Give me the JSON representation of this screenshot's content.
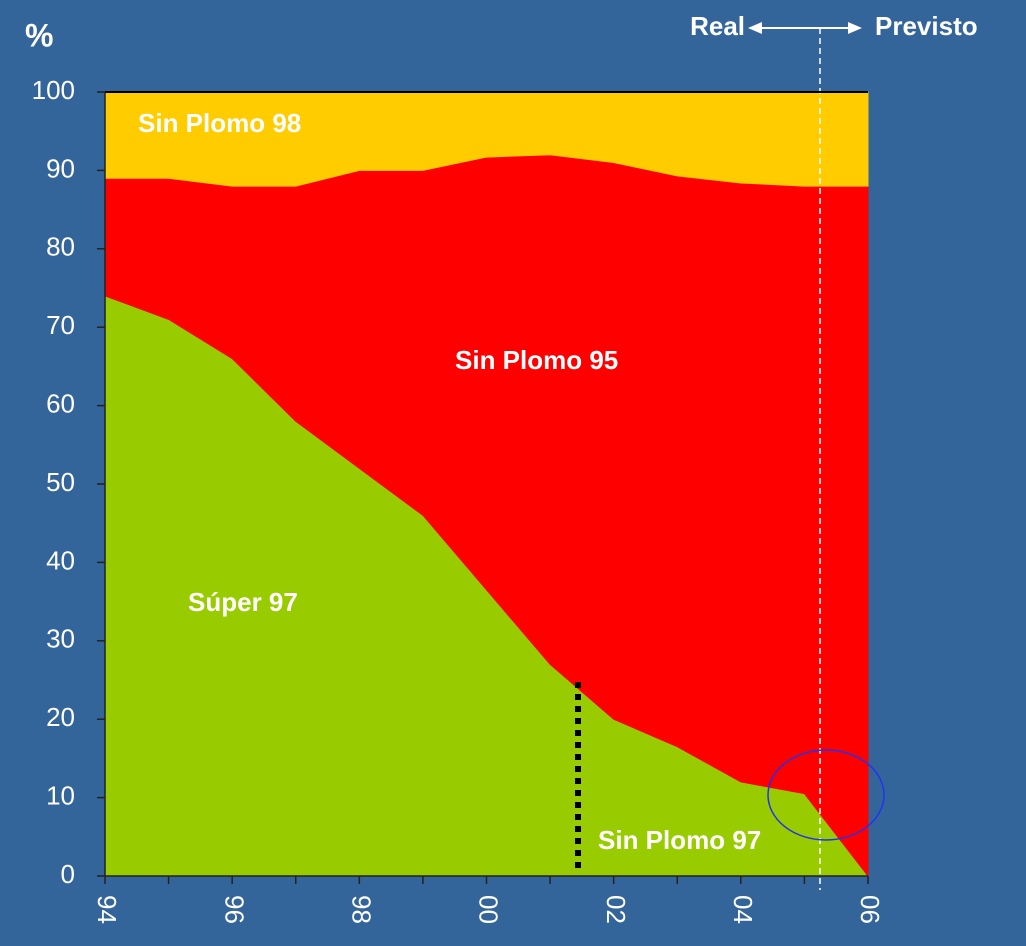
{
  "chart_data": {
    "type": "stacked_area",
    "y_label": "%",
    "categories": [
      "94",
      null,
      "96",
      null,
      "98",
      null,
      "00",
      null,
      "02",
      null,
      "04",
      null,
      "06"
    ],
    "series": [
      {
        "name": "Súper 97",
        "color": "#99cc00",
        "values": [
          74,
          71,
          66,
          58,
          52,
          46,
          36.5,
          27,
          20,
          16.5,
          12,
          10.5,
          0
        ]
      },
      {
        "name": "Sin Plomo 95",
        "color": "#ff0000",
        "values": [
          15,
          18,
          22,
          30,
          38,
          44,
          55.2,
          65,
          71,
          72.8,
          76.4,
          77.5,
          88
        ]
      },
      {
        "name": "Sin Plomo 98",
        "color": "#ffcc00",
        "values": [
          11,
          11,
          12,
          12,
          10,
          10,
          8.3,
          8,
          9,
          10.7,
          11.6,
          12,
          12
        ]
      }
    ],
    "ylim": [
      0,
      100
    ],
    "yticks": [
      0,
      10,
      20,
      30,
      40,
      50,
      60,
      70,
      80,
      90,
      100
    ],
    "annotations": [
      "Real",
      "Previsto",
      "Sin Plomo 97"
    ]
  }
}
